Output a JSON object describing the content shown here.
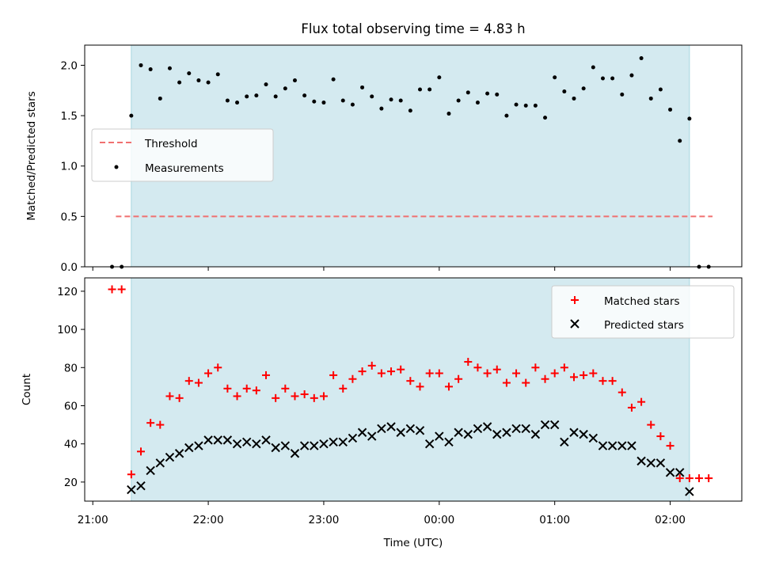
{
  "chart_data": [
    {
      "type": "scatter",
      "title": "Flux total observing time = 4.83 h",
      "ylabel": "Matched/Predicted stars",
      "xlabel": "",
      "ylim": [
        0,
        2.2
      ],
      "xlim_hours": [
        20.93,
        26.62
      ],
      "yticks": [
        0.0,
        0.5,
        1.0,
        1.5,
        2.0
      ],
      "ytick_labels": [
        "0.0",
        "0.5",
        "1.0",
        "1.5",
        "2.0"
      ],
      "shaded_region": {
        "x_start": "21:20",
        "x_end": "02:10",
        "color": "#d4eaf0"
      },
      "legend": {
        "position": "center-left",
        "entries": [
          {
            "label": "Threshold",
            "style": "dashed-line",
            "color": "#f07070"
          },
          {
            "label": "Measurements",
            "style": "dot",
            "color": "#000000"
          }
        ]
      },
      "series": [
        {
          "name": "Threshold",
          "kind": "line",
          "color": "#f07070",
          "x": [
            "21:12",
            "02:22"
          ],
          "y": [
            0.5,
            0.5
          ]
        },
        {
          "name": "Measurements",
          "kind": "scatter",
          "color": "#000000",
          "x": [
            "21:10",
            "21:15",
            "21:20",
            "21:25",
            "21:30",
            "21:35",
            "21:40",
            "21:45",
            "21:50",
            "21:55",
            "22:00",
            "22:05",
            "22:10",
            "22:15",
            "22:20",
            "22:25",
            "22:30",
            "22:35",
            "22:40",
            "22:45",
            "22:50",
            "22:55",
            "23:00",
            "23:05",
            "23:10",
            "23:15",
            "23:20",
            "23:25",
            "23:30",
            "23:35",
            "23:40",
            "23:45",
            "23:50",
            "23:55",
            "00:00",
            "00:05",
            "00:10",
            "00:15",
            "00:20",
            "00:25",
            "00:30",
            "00:35",
            "00:40",
            "00:45",
            "00:50",
            "00:55",
            "01:00",
            "01:05",
            "01:10",
            "01:15",
            "01:20",
            "01:25",
            "01:30",
            "01:35",
            "01:40",
            "01:45",
            "01:50",
            "01:55",
            "02:00",
            "02:05",
            "02:10",
            "02:15",
            "02:20"
          ],
          "y": [
            0.0,
            0.0,
            1.5,
            2.0,
            1.96,
            1.67,
            1.97,
            1.83,
            1.92,
            1.85,
            1.83,
            1.91,
            1.65,
            1.63,
            1.69,
            1.7,
            1.81,
            1.69,
            1.77,
            1.85,
            1.7,
            1.64,
            1.63,
            1.86,
            1.65,
            1.61,
            1.78,
            1.69,
            1.57,
            1.66,
            1.65,
            1.55,
            1.76,
            1.76,
            1.88,
            1.52,
            1.65,
            1.73,
            1.63,
            1.72,
            1.71,
            1.5,
            1.61,
            1.6,
            1.6,
            1.48,
            1.88,
            1.74,
            1.67,
            1.77,
            1.98,
            1.87,
            1.87,
            1.71,
            1.9,
            2.07,
            1.67,
            1.76,
            1.56,
            1.25,
            1.47,
            0.0,
            0.0
          ]
        }
      ]
    },
    {
      "type": "scatter",
      "title": "",
      "ylabel": "Count",
      "xlabel": "Time (UTC)",
      "ylim": [
        10,
        127
      ],
      "xlim_hours": [
        20.93,
        26.62
      ],
      "yticks": [
        20,
        40,
        60,
        80,
        100,
        120
      ],
      "ytick_labels": [
        "20",
        "40",
        "60",
        "80",
        "100",
        "120"
      ],
      "xtick_labels": [
        "21:00",
        "22:00",
        "23:00",
        "00:00",
        "01:00",
        "02:00"
      ],
      "shaded_region": {
        "x_start": "21:20",
        "x_end": "02:10",
        "color": "#d4eaf0"
      },
      "legend": {
        "position": "top-right",
        "entries": [
          {
            "label": "Matched stars",
            "style": "plus",
            "color": "#ff0000"
          },
          {
            "label": "Predicted stars",
            "style": "x",
            "color": "#000000"
          }
        ]
      },
      "series": [
        {
          "name": "Matched stars",
          "kind": "scatter",
          "marker": "plus",
          "color": "#ff0000",
          "x": [
            "21:10",
            "21:15",
            "21:20",
            "21:25",
            "21:30",
            "21:35",
            "21:40",
            "21:45",
            "21:50",
            "21:55",
            "22:00",
            "22:05",
            "22:10",
            "22:15",
            "22:20",
            "22:25",
            "22:30",
            "22:35",
            "22:40",
            "22:45",
            "22:50",
            "22:55",
            "23:00",
            "23:05",
            "23:10",
            "23:15",
            "23:20",
            "23:25",
            "23:30",
            "23:35",
            "23:40",
            "23:45",
            "23:50",
            "23:55",
            "00:00",
            "00:05",
            "00:10",
            "00:15",
            "00:20",
            "00:25",
            "00:30",
            "00:35",
            "00:40",
            "00:45",
            "00:50",
            "00:55",
            "01:00",
            "01:05",
            "01:10",
            "01:15",
            "01:20",
            "01:25",
            "01:30",
            "01:35",
            "01:40",
            "01:45",
            "01:50",
            "01:55",
            "02:00",
            "02:05",
            "02:10",
            "02:15",
            "02:20"
          ],
          "y": [
            121,
            121,
            24,
            36,
            51,
            50,
            65,
            64,
            73,
            72,
            77,
            80,
            69,
            65,
            69,
            68,
            76,
            64,
            69,
            65,
            66,
            64,
            65,
            76,
            69,
            74,
            78,
            81,
            77,
            78,
            79,
            73,
            70,
            77,
            77,
            70,
            74,
            83,
            80,
            77,
            79,
            72,
            77,
            72,
            80,
            74,
            77,
            80,
            75,
            76,
            77,
            73,
            73,
            67,
            59,
            62,
            50,
            44,
            39,
            22,
            22,
            22,
            22
          ]
        },
        {
          "name": "Predicted stars",
          "kind": "scatter",
          "marker": "x",
          "color": "#000000",
          "x": [
            "21:20",
            "21:25",
            "21:30",
            "21:35",
            "21:40",
            "21:45",
            "21:50",
            "21:55",
            "22:00",
            "22:05",
            "22:10",
            "22:15",
            "22:20",
            "22:25",
            "22:30",
            "22:35",
            "22:40",
            "22:45",
            "22:50",
            "22:55",
            "23:00",
            "23:05",
            "23:10",
            "23:15",
            "23:20",
            "23:25",
            "23:30",
            "23:35",
            "23:40",
            "23:45",
            "23:50",
            "23:55",
            "00:00",
            "00:05",
            "00:10",
            "00:15",
            "00:20",
            "00:25",
            "00:30",
            "00:35",
            "00:40",
            "00:45",
            "00:50",
            "00:55",
            "01:00",
            "01:05",
            "01:10",
            "01:15",
            "01:20",
            "01:25",
            "01:30",
            "01:35",
            "01:40",
            "01:45",
            "01:50",
            "01:55",
            "02:00",
            "02:05",
            "02:10"
          ],
          "y": [
            16,
            18,
            26,
            30,
            33,
            35,
            38,
            39,
            42,
            42,
            42,
            40,
            41,
            40,
            42,
            38,
            39,
            35,
            39,
            39,
            40,
            41,
            41,
            43,
            46,
            44,
            48,
            49,
            46,
            48,
            47,
            40,
            44,
            41,
            46,
            45,
            48,
            49,
            45,
            46,
            48,
            48,
            45,
            50,
            50,
            41,
            46,
            45,
            43,
            39,
            39,
            39,
            39,
            31,
            30,
            30,
            25,
            25,
            15
          ]
        }
      ]
    }
  ]
}
